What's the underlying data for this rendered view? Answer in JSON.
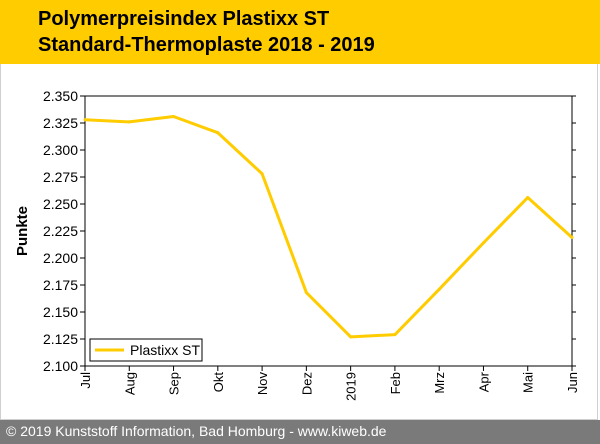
{
  "header": {
    "title_line1": "Polymerpreisindex Plastixx ST",
    "title_line2": "Standard-Thermoplaste 2018 - 2019"
  },
  "footer": {
    "text": "© 2019 Kunststoff Information, Bad Homburg - www.kiweb.de"
  },
  "colors": {
    "accent": "#ffcc00",
    "footer": "#7a7a7a",
    "series": "#ffcc00"
  },
  "chart_data": {
    "type": "line",
    "ylabel": "Punkte",
    "categories": [
      "Jul",
      "Aug",
      "Sep",
      "Okt",
      "Nov",
      "Dez",
      "2019",
      "Feb",
      "Mrz",
      "Apr",
      "Mai",
      "Jun"
    ],
    "yticks": [
      "2.350",
      "2.325",
      "2.300",
      "2.275",
      "2.250",
      "2.225",
      "2.200",
      "2.175",
      "2.150",
      "2.125",
      "2.100"
    ],
    "ylim": [
      2100,
      2350
    ],
    "series": [
      {
        "name": "Plastixx ST",
        "values": [
          2328,
          2326,
          2331,
          2316,
          2278,
          2168,
          2127,
          2129,
          2171,
          2214,
          2256,
          2219
        ]
      }
    ],
    "grid": false,
    "legend": "bottom-left"
  }
}
